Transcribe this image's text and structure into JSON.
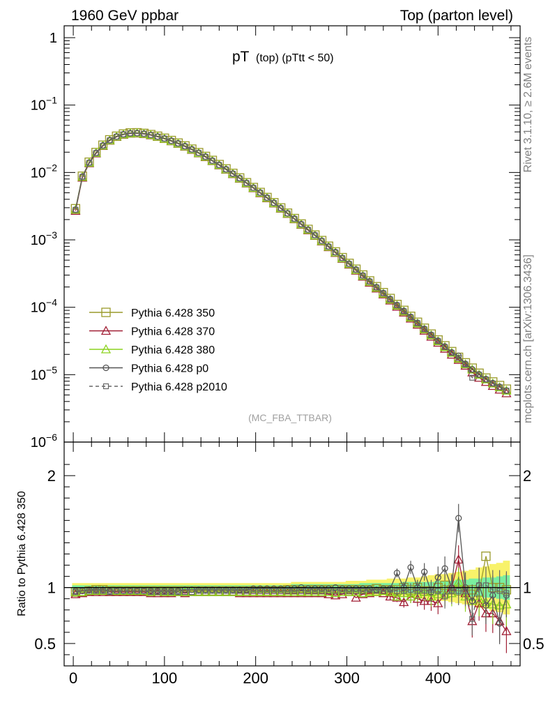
{
  "header": {
    "left_title": "1960 GeV ppbar",
    "right_title": "Top (parton level)",
    "side_label_top": "Rivet 3.1.10, ≥ 2.6M events",
    "side_label_bottom": "mcplots.cern.ch [arXiv:1306.3436]"
  },
  "chart_data": [
    {
      "type": "line",
      "panel": "main",
      "title_main": "pT",
      "title_sub": "(top) (pTtt < 50)",
      "watermark": "(MC_FBA_TTBAR)",
      "yscale": "log",
      "xlim": [
        -10,
        490
      ],
      "ylim": [
        1e-06,
        1.5
      ],
      "y_ticks": [
        {
          "value": 1e-06,
          "base": "10",
          "exp": "−6"
        },
        {
          "value": 1e-05,
          "base": "10",
          "exp": "−5"
        },
        {
          "value": 0.0001,
          "base": "10",
          "exp": "−4"
        },
        {
          "value": 0.001,
          "base": "10",
          "exp": "−3"
        },
        {
          "value": 0.01,
          "base": "10",
          "exp": "−2"
        },
        {
          "value": 0.1,
          "base": "10",
          "exp": "−1"
        },
        {
          "value": 1,
          "base": "1",
          "exp": ""
        }
      ],
      "legend_position": "bottom-left",
      "x": [
        2.5,
        10,
        17.5,
        25,
        32.5,
        40,
        47.5,
        55,
        62.5,
        70,
        77.5,
        85,
        92.5,
        100,
        107.5,
        115,
        122.5,
        130,
        137.5,
        145,
        152.5,
        160,
        167.5,
        175,
        182.5,
        190,
        197.5,
        205,
        212.5,
        220,
        227.5,
        235,
        242.5,
        250,
        257.5,
        265,
        272.5,
        280,
        287.5,
        295,
        302.5,
        310,
        317.5,
        325,
        332.5,
        340,
        347.5,
        355,
        362.5,
        370,
        377.5,
        385,
        392.5,
        400,
        407.5,
        415,
        422.5,
        430,
        437.5,
        445,
        452.5,
        460,
        467.5,
        475
      ],
      "series": [
        {
          "name": "Pythia 6.428 350",
          "color": "#9a9a2a",
          "marker": "square",
          "dash": "solid",
          "values": [
            0.0029,
            0.0088,
            0.0142,
            0.0198,
            0.0254,
            0.0305,
            0.0345,
            0.0372,
            0.0386,
            0.0388,
            0.038,
            0.0365,
            0.0345,
            0.0322,
            0.0298,
            0.0273,
            0.0248,
            0.0222,
            0.0197,
            0.0173,
            0.0151,
            0.0131,
            0.0113,
            0.0097,
            0.0083,
            0.00705,
            0.00598,
            0.00505,
            0.00425,
            0.00356,
            0.00298,
            0.00249,
            0.00207,
            0.00172,
            0.00143,
            0.00118,
            0.000977,
            0.000805,
            0.000663,
            0.000545,
            0.000448,
            0.000367,
            0.000301,
            0.000246,
            0.000202,
            0.000165,
            0.000135,
            0.00011,
            8.99e-05,
            7.34e-05,
            5.99e-05,
            4.89e-05,
            4e-05,
            3.27e-05,
            2.68e-05,
            2.2e-05,
            1.81e-05,
            1.5e-05,
            1.25e-05,
            1.05e-05,
            8.9e-06,
            7.8e-06,
            6.9e-06,
            6.1e-06
          ]
        },
        {
          "name": "Pythia 6.428 370",
          "color": "#a01e34",
          "marker": "triangle",
          "dash": "solid",
          "values": [
            0.0027,
            0.0084,
            0.0137,
            0.0192,
            0.0247,
            0.0297,
            0.0337,
            0.0364,
            0.0378,
            0.038,
            0.0372,
            0.0357,
            0.0338,
            0.0315,
            0.0291,
            0.0267,
            0.0242,
            0.0217,
            0.0193,
            0.0169,
            0.0148,
            0.0128,
            0.011,
            0.00948,
            0.00811,
            0.0069,
            0.00585,
            0.00494,
            0.00416,
            0.00349,
            0.00292,
            0.00244,
            0.00203,
            0.00168,
            0.00139,
            0.00115,
            0.00095,
            0.00078,
            0.00064,
            0.000525,
            0.00043,
            0.00035,
            0.000285,
            0.000232,
            0.00019,
            0.000155,
            0.000126,
            0.000102,
            8.35e-05,
            6.8e-05,
            5.53e-05,
            4.5e-05,
            3.66e-05,
            2.98e-05,
            2.43e-05,
            1.98e-05,
            1.66e-05,
            1.36e-05,
            1.08e-05,
            9e-06,
            7.8e-06,
            6.8e-06,
            6e-06,
            5.3e-06
          ]
        },
        {
          "name": "Pythia 6.428 380",
          "color": "#8cd21e",
          "marker": "triangle",
          "dash": "solid",
          "values": [
            0.0028,
            0.0086,
            0.0139,
            0.0195,
            0.025,
            0.03,
            0.034,
            0.0367,
            0.0381,
            0.0383,
            0.0375,
            0.036,
            0.034,
            0.0317,
            0.0293,
            0.0269,
            0.0244,
            0.0219,
            0.0194,
            0.0171,
            0.0149,
            0.0129,
            0.0111,
            0.00955,
            0.00818,
            0.00696,
            0.0059,
            0.00499,
            0.0042,
            0.00352,
            0.00295,
            0.00246,
            0.00205,
            0.0017,
            0.00141,
            0.00116,
            0.00096,
            0.00079,
            0.00065,
            0.000533,
            0.000437,
            0.000357,
            0.000292,
            0.000239,
            0.000195,
            0.000159,
            0.00013,
            0.000106,
            8.66e-05,
            7.06e-05,
            5.76e-05,
            4.7e-05,
            3.84e-05,
            3.14e-05,
            2.57e-05,
            2.11e-05,
            1.73e-05,
            1.43e-05,
            1.19e-05,
            1e-05,
            8.5e-06,
            7.4e-06,
            6.5e-06,
            5.8e-06
          ]
        },
        {
          "name": "Pythia 6.428 p0",
          "color": "#555555",
          "marker": "circle",
          "dash": "solid",
          "values": [
            0.0028,
            0.0087,
            0.014,
            0.0196,
            0.0252,
            0.0302,
            0.0342,
            0.0369,
            0.0383,
            0.0385,
            0.0377,
            0.0362,
            0.0342,
            0.032,
            0.0296,
            0.0271,
            0.0246,
            0.0221,
            0.0196,
            0.0172,
            0.015,
            0.013,
            0.0112,
            0.00963,
            0.00825,
            0.00701,
            0.00595,
            0.00503,
            0.00424,
            0.00355,
            0.00297,
            0.00248,
            0.00207,
            0.00172,
            0.00142,
            0.00118,
            0.00097,
            0.0008,
            0.000658,
            0.00054,
            0.000443,
            0.000363,
            0.000297,
            0.000243,
            0.000199,
            0.000163,
            0.000133,
            0.000108,
            8.85e-05,
            7.22e-05,
            5.89e-05,
            4.8e-05,
            3.92e-05,
            3.2e-05,
            2.62e-05,
            2.14e-05,
            1.9e-05,
            1.45e-05,
            1.2e-05,
            1.01e-05,
            8.6e-06,
            7.5e-06,
            6.6e-06,
            5.8e-06
          ]
        },
        {
          "name": "Pythia 6.428 p2010",
          "color": "#666666",
          "marker": "square-small",
          "dash": "dashed",
          "values": [
            0.0028,
            0.0086,
            0.0139,
            0.0194,
            0.025,
            0.03,
            0.034,
            0.0367,
            0.038,
            0.0383,
            0.0375,
            0.036,
            0.034,
            0.0318,
            0.0294,
            0.0269,
            0.0244,
            0.0219,
            0.0195,
            0.0171,
            0.0149,
            0.0129,
            0.0111,
            0.00957,
            0.00819,
            0.00697,
            0.00591,
            0.005,
            0.00421,
            0.00353,
            0.00295,
            0.00247,
            0.00205,
            0.0017,
            0.00141,
            0.00117,
            0.000963,
            0.000793,
            0.000652,
            0.000536,
            0.00044,
            0.00036,
            0.000295,
            0.000241,
            0.000197,
            0.000161,
            0.000131,
            0.000107,
            8.72e-05,
            7.12e-05,
            5.8e-05,
            4.73e-05,
            3.86e-05,
            3.15e-05,
            2.58e-05,
            2.11e-05,
            1.78e-05,
            1.42e-05,
            9e-06,
            1e-05,
            8.5e-06,
            7.4e-06,
            6.5e-06,
            5.8e-06
          ]
        }
      ]
    },
    {
      "type": "line",
      "panel": "ratio",
      "ylabel": "Ratio to Pythia 6.428 350",
      "xlim": [
        -10,
        490
      ],
      "ylim": [
        0.3,
        2.3
      ],
      "y_ticks": [
        0.5,
        1,
        2
      ],
      "x_ticks": [
        0,
        100,
        200,
        300,
        400
      ],
      "reference_line": 1,
      "band_color": "#f8f26a",
      "band_color_2": "#7aeea0",
      "x": [
        2.5,
        10,
        17.5,
        25,
        32.5,
        40,
        47.5,
        55,
        62.5,
        70,
        77.5,
        85,
        92.5,
        100,
        107.5,
        115,
        122.5,
        130,
        137.5,
        145,
        152.5,
        160,
        167.5,
        175,
        182.5,
        190,
        197.5,
        205,
        212.5,
        220,
        227.5,
        235,
        242.5,
        250,
        257.5,
        265,
        272.5,
        280,
        287.5,
        295,
        302.5,
        310,
        317.5,
        325,
        332.5,
        340,
        347.5,
        355,
        362.5,
        370,
        377.5,
        385,
        392.5,
        400,
        407.5,
        415,
        422.5,
        430,
        437.5,
        445,
        452.5,
        460,
        467.5,
        475
      ],
      "band_yellow": [
        0.04,
        0.04,
        0.04,
        0.04,
        0.04,
        0.04,
        0.04,
        0.04,
        0.04,
        0.04,
        0.04,
        0.04,
        0.04,
        0.04,
        0.04,
        0.04,
        0.04,
        0.04,
        0.04,
        0.04,
        0.04,
        0.04,
        0.04,
        0.04,
        0.04,
        0.04,
        0.04,
        0.04,
        0.04,
        0.04,
        0.04,
        0.04,
        0.05,
        0.05,
        0.05,
        0.05,
        0.05,
        0.05,
        0.05,
        0.05,
        0.06,
        0.06,
        0.06,
        0.07,
        0.07,
        0.07,
        0.08,
        0.08,
        0.08,
        0.09,
        0.09,
        0.1,
        0.11,
        0.12,
        0.12,
        0.13,
        0.14,
        0.15,
        0.16,
        0.18,
        0.19,
        0.21,
        0.22,
        0.24
      ],
      "band_green": [
        0.02,
        0.02,
        0.02,
        0.02,
        0.02,
        0.02,
        0.02,
        0.02,
        0.02,
        0.02,
        0.02,
        0.02,
        0.02,
        0.02,
        0.02,
        0.02,
        0.02,
        0.02,
        0.02,
        0.02,
        0.02,
        0.02,
        0.02,
        0.02,
        0.02,
        0.02,
        0.02,
        0.02,
        0.02,
        0.02,
        0.02,
        0.02,
        0.03,
        0.03,
        0.03,
        0.03,
        0.03,
        0.03,
        0.03,
        0.03,
        0.03,
        0.03,
        0.04,
        0.04,
        0.04,
        0.04,
        0.04,
        0.04,
        0.05,
        0.05,
        0.05,
        0.05,
        0.05,
        0.06,
        0.06,
        0.06,
        0.07,
        0.07,
        0.08,
        0.08,
        0.09,
        0.09,
        0.1,
        0.11
      ],
      "series": [
        {
          "name": "Pythia 6.428 350",
          "values": [
            0.96,
            0.96,
            0.97,
            0.98,
            0.98,
            0.97,
            0.97,
            0.97,
            0.97,
            0.97,
            0.97,
            0.97,
            0.97,
            0.97,
            0.97,
            0.97,
            0.97,
            0.97,
            0.97,
            0.97,
            0.97,
            0.97,
            0.97,
            0.97,
            0.97,
            0.97,
            0.97,
            0.97,
            0.97,
            0.97,
            0.97,
            0.98,
            0.98,
            0.97,
            0.98,
            0.98,
            0.98,
            0.98,
            0.98,
            0.98,
            0.98,
            0.98,
            0.98,
            0.98,
            0.99,
            0.98,
            0.98,
            0.98,
            1.0,
            0.98,
            1.0,
            0.97,
            0.97,
            1.0,
            1.02,
            0.98,
            0.97,
            0.97,
            0.98,
            0.96,
            1.28,
            1.0,
            1.0,
            0.98
          ]
        },
        {
          "name": "Pythia 6.428 370",
          "values": [
            0.94,
            0.95,
            0.96,
            0.96,
            0.96,
            0.96,
            0.96,
            0.96,
            0.96,
            0.96,
            0.96,
            0.95,
            0.95,
            0.95,
            0.95,
            0.96,
            0.95,
            0.96,
            0.96,
            0.96,
            0.96,
            0.96,
            0.96,
            0.96,
            0.95,
            0.95,
            0.95,
            0.95,
            0.95,
            0.95,
            0.95,
            0.95,
            0.95,
            0.95,
            0.95,
            0.95,
            0.95,
            0.94,
            0.93,
            0.94,
            0.96,
            0.91,
            0.94,
            0.95,
            0.96,
            0.95,
            0.92,
            0.91,
            0.87,
            0.92,
            0.9,
            0.88,
            0.88,
            0.86,
            0.94,
            1.0,
            1.25,
            0.95,
            0.7,
            0.86,
            0.77,
            0.77,
            0.7,
            0.61
          ]
        },
        {
          "name": "Pythia 6.428 380",
          "values": [
            0.96,
            0.96,
            0.97,
            0.97,
            0.97,
            0.97,
            0.97,
            0.97,
            0.97,
            0.97,
            0.97,
            0.96,
            0.97,
            0.96,
            0.96,
            0.96,
            0.96,
            0.96,
            0.96,
            0.96,
            0.96,
            0.96,
            0.96,
            0.96,
            0.96,
            0.96,
            0.96,
            0.96,
            0.96,
            0.96,
            0.96,
            0.96,
            0.96,
            0.96,
            0.96,
            0.96,
            0.96,
            0.96,
            0.95,
            0.96,
            0.96,
            0.96,
            0.95,
            0.96,
            0.96,
            0.97,
            0.96,
            0.92,
            0.95,
            0.92,
            0.94,
            0.96,
            0.92,
            0.94,
            0.94,
            0.95,
            1.05,
            0.92,
            0.88,
            0.9,
            0.87,
            0.85,
            0.84,
            0.85
          ]
        },
        {
          "name": "Pythia 6.428 p0",
          "values": [
            0.97,
            0.97,
            0.98,
            0.98,
            0.98,
            0.97,
            0.97,
            0.97,
            0.97,
            0.97,
            0.97,
            0.97,
            0.97,
            0.97,
            0.97,
            0.97,
            0.98,
            0.98,
            0.98,
            0.98,
            0.98,
            0.98,
            0.98,
            0.98,
            0.98,
            0.98,
            0.99,
            0.99,
            0.99,
            0.99,
            0.99,
            0.99,
            0.99,
            1.0,
            0.99,
            0.99,
            0.99,
            0.99,
            1.0,
            0.99,
            0.99,
            0.99,
            0.99,
            0.99,
            0.98,
            0.99,
            0.99,
            1.13,
            1.0,
            1.18,
            1.0,
            1.14,
            0.96,
            1.09,
            1.17,
            1.0,
            1.62,
            1.0,
            0.88,
            1.02,
            0.84,
            0.93,
            0.68,
            0.93
          ]
        },
        {
          "name": "Pythia 6.428 p2010",
          "values": [
            0.96,
            0.97,
            0.97,
            0.97,
            0.97,
            0.96,
            0.97,
            0.97,
            0.97,
            0.97,
            0.97,
            0.96,
            0.96,
            0.96,
            0.96,
            0.96,
            0.96,
            0.96,
            0.97,
            0.97,
            0.97,
            0.97,
            0.97,
            0.97,
            0.97,
            0.97,
            0.97,
            0.97,
            0.97,
            0.97,
            0.97,
            0.97,
            0.97,
            0.97,
            0.97,
            0.97,
            0.97,
            0.97,
            0.97,
            0.97,
            0.97,
            0.97,
            0.97,
            0.98,
            0.97,
            0.97,
            0.98,
            0.97,
            0.97,
            0.98,
            0.97,
            0.97,
            0.98,
            0.97,
            0.92,
            0.97,
            0.97,
            0.97,
            0.72,
            1.02,
            1.02,
            0.98,
            0.97,
            0.95
          ]
        }
      ]
    }
  ]
}
